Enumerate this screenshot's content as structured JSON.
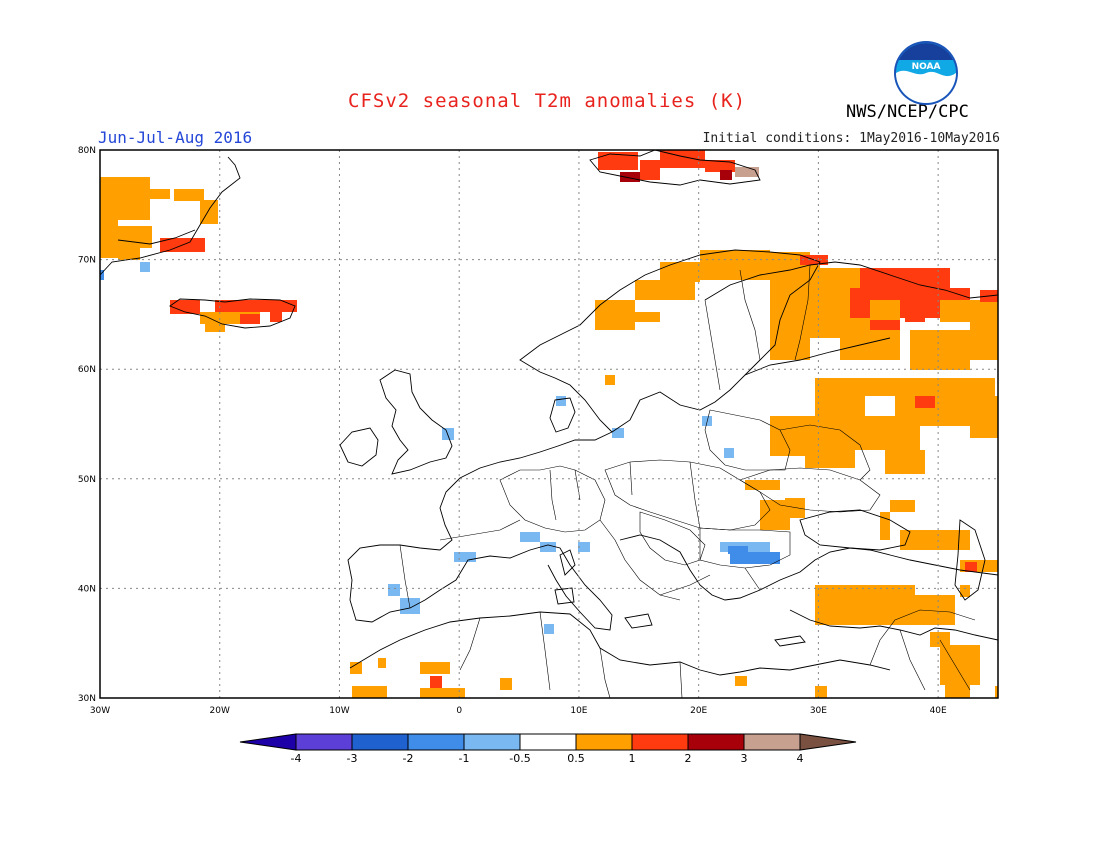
{
  "header": {
    "title": "CFSv2 seasonal T2m anomalies (K)",
    "period": "Jun-Jul-Aug 2016",
    "initial_conditions": "Initial conditions: 1May2016-10May2016",
    "agency": "NWS/NCEP/CPC",
    "logo_text": "NOAA"
  },
  "map": {
    "lon_labels": [
      "30W",
      "20W",
      "10W",
      "0",
      "10E",
      "20E",
      "30E",
      "40E"
    ],
    "lat_labels": [
      "80N",
      "70N",
      "60N",
      "50N",
      "40N",
      "30N"
    ],
    "lon_range": [
      -30,
      45
    ],
    "lat_range": [
      30,
      80
    ],
    "grid": true,
    "anomaly_regions": [
      {
        "name": "Greenland east coast",
        "category": "0.5 to 1"
      },
      {
        "name": "Iceland",
        "category": "1 to 2"
      },
      {
        "name": "Svalbard",
        "category": "1 to 3"
      },
      {
        "name": "Scandinavia north coast",
        "category": "0.5 to 1"
      },
      {
        "name": "Kola Peninsula / Barents coast",
        "category": "1 to 2"
      },
      {
        "name": "Western Russia",
        "category": "0.5 to 1"
      },
      {
        "name": "Turkey",
        "category": "0.5 to 1"
      },
      {
        "name": "Romania / Bulgaria",
        "category": "-1 to -0.5"
      }
    ]
  },
  "colorbar": {
    "labels": [
      "-4",
      "-3",
      "-2",
      "-1",
      "-0.5",
      "0.5",
      "1",
      "2",
      "3",
      "4"
    ],
    "colors": [
      "#1e00a8",
      "#5b3fd6",
      "#1f62cf",
      "#3f8de8",
      "#7ab8f2",
      "#ffffff",
      "#ffa000",
      "#ff3b0f",
      "#a8000a",
      "#c8a090",
      "#7a5040"
    ]
  },
  "colors": {
    "warm1": "#ffa000",
    "warm2": "#ff3b0f",
    "warm3": "#a8000a",
    "warm4": "#c8a090",
    "cool1": "#7ab8f2",
    "cool2": "#3f8de8"
  }
}
